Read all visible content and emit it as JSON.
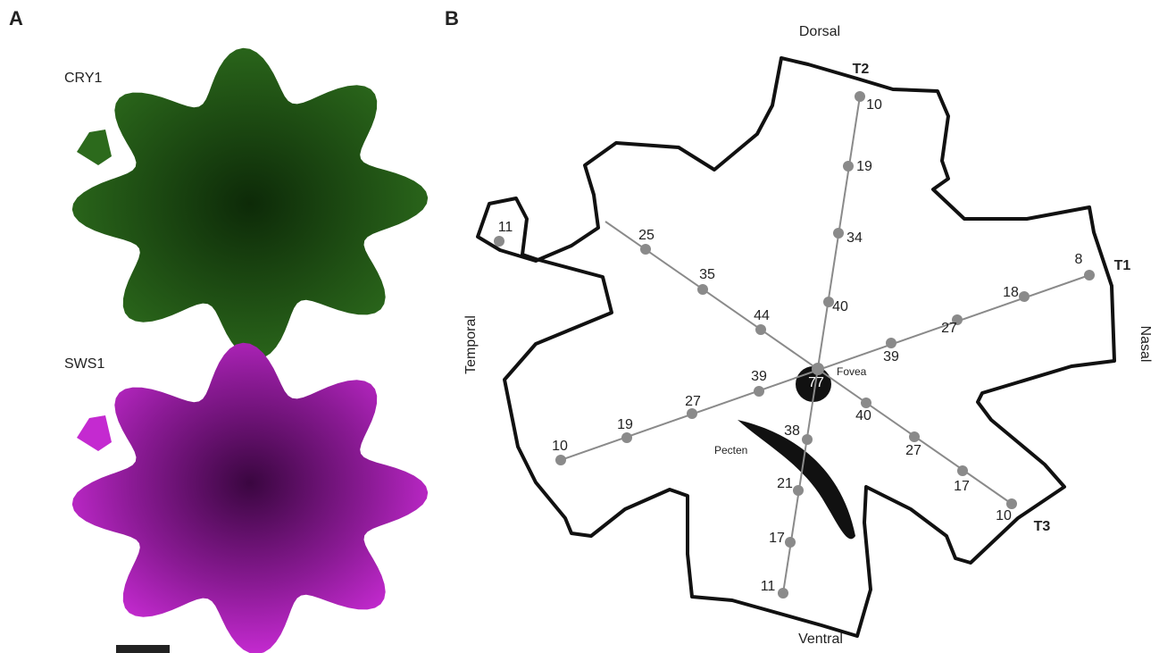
{
  "panel_a": {
    "label": "A",
    "images": [
      {
        "label": "CRY1"
      },
      {
        "label": "SWS1"
      }
    ]
  },
  "panel_b": {
    "label": "B",
    "directions": {
      "dorsal": "Dorsal",
      "ventral": "Ventral",
      "temporal": "Temporal",
      "nasal": "Nasal"
    },
    "fovea": {
      "label": "Fovea",
      "value": 77
    },
    "pecten": "Pecten",
    "flap_value": 11,
    "transects": [
      {
        "name": "T2",
        "values": [
          10,
          19,
          34,
          40,
          38,
          21,
          17,
          11
        ]
      },
      {
        "name": "T1",
        "values": [
          8,
          18,
          27,
          39,
          39,
          27,
          19,
          10
        ]
      },
      {
        "name": "T3",
        "values": [
          10,
          17,
          27,
          40,
          44,
          35,
          25
        ]
      }
    ]
  }
}
